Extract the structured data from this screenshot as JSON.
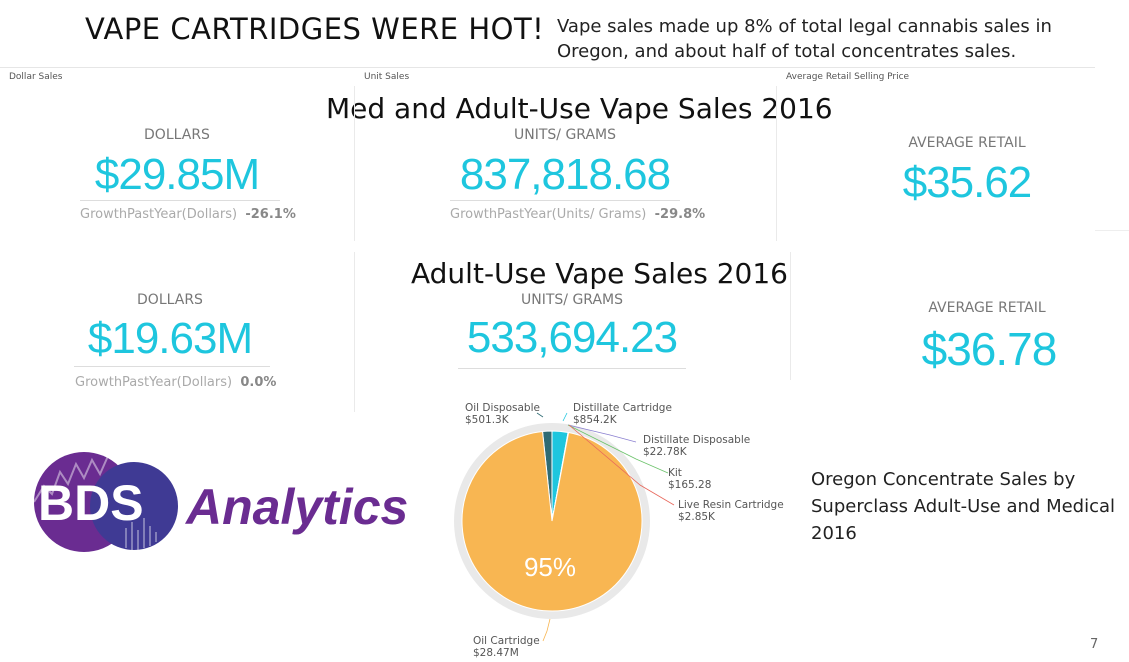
{
  "header": {
    "title": "VAPE CARTRIDGES WERE HOT!",
    "subtitle": "Vape sales made up 8% of total legal cannabis sales in Oregon, and about half of total concentrates sales."
  },
  "small_labels": {
    "dollar_sales": "Dollar Sales",
    "unit_sales": "Unit Sales",
    "avg_retail_price": "Average Retail Selling Price"
  },
  "section1": {
    "heading": "Med and Adult-Use Vape Sales 2016",
    "dollars_label": "DOLLARS",
    "dollars_value": "$29.85M",
    "dollars_growth_label": "GrowthPastYear(Dollars)",
    "dollars_growth_value": "-26.1%",
    "units_label": "UNITS/ GRAMS",
    "units_value": "837,818.68",
    "units_growth_label": "GrowthPastYear(Units/ Grams)",
    "units_growth_value": "-29.8%",
    "avg_label": "AVERAGE RETAIL",
    "avg_value": "$35.62"
  },
  "section2": {
    "heading": "Adult-Use Vape Sales 2016",
    "dollars_label": "DOLLARS",
    "dollars_value": "$19.63M",
    "dollars_growth_label": "GrowthPastYear(Dollars)",
    "dollars_growth_value": "0.0%",
    "units_label": "UNITS/ GRAMS",
    "units_value": "533,694.23",
    "avg_label": "AVERAGE RETAIL",
    "avg_value": "$36.78"
  },
  "logo": {
    "mark": "BDS",
    "word": "Analytics"
  },
  "chart_data": {
    "type": "pie",
    "center_label": "95%",
    "slices": [
      {
        "name": "Oil Cartridge",
        "value_label": "$28.47M",
        "value": 28470000,
        "color": "#f8b652"
      },
      {
        "name": "Oil Disposable",
        "value_label": "$501.3K",
        "value": 501300,
        "color": "#2f6b73"
      },
      {
        "name": "Distillate Cartridge",
        "value_label": "$854.2K",
        "value": 854200,
        "color": "#1ec6de"
      },
      {
        "name": "Distillate Disposable",
        "value_label": "$22.78K",
        "value": 22780,
        "color": "#8a7fd0"
      },
      {
        "name": "Kit",
        "value_label": "$165.28",
        "value": 165.28,
        "color": "#6cc36b"
      },
      {
        "name": "Live Resin Cartridge",
        "value_label": "$2.85K",
        "value": 2850,
        "color": "#e8685c"
      }
    ]
  },
  "pie_caption": "Oregon Concentrate Sales by Superclass Adult-Use and Medical 2016",
  "page_number": "7"
}
